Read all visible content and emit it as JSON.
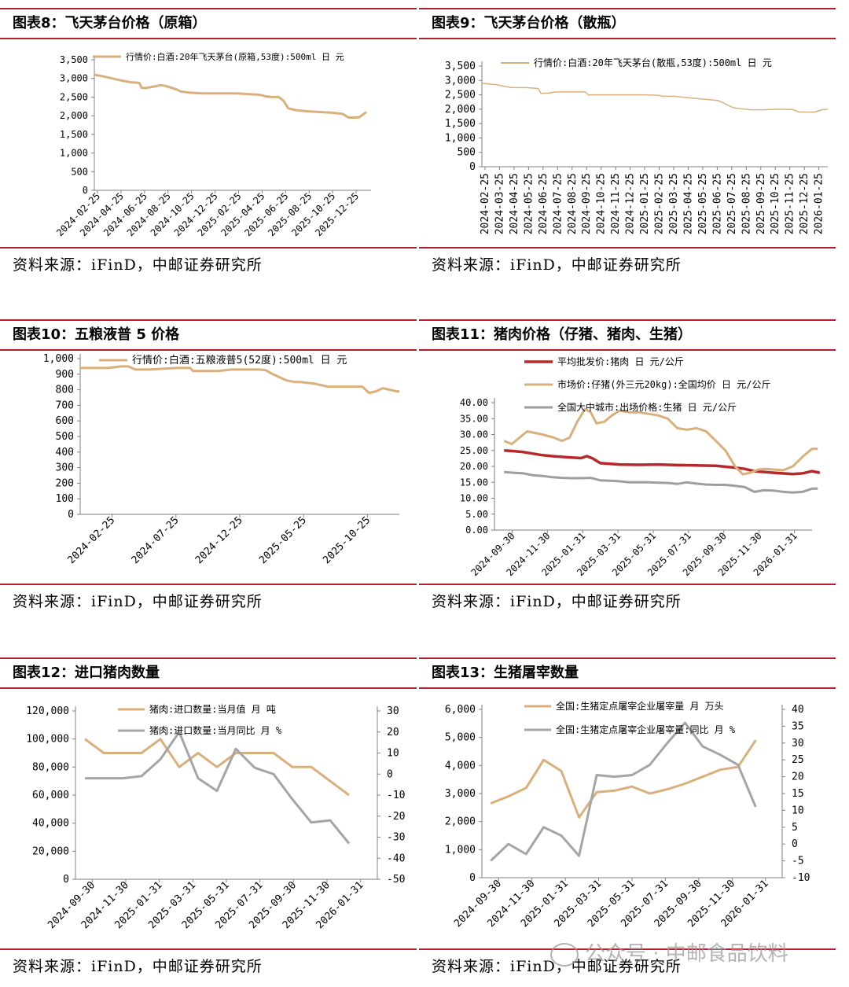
{
  "sources": [
    "资料来源：iFinD，中邮证券研究所",
    "资料来源：iFinD，中邮证券研究所",
    "资料来源：iFinD，中邮证券研究所",
    "资料来源：iFinD，中邮证券研究所",
    "资料来源：iFinD，中邮证券研究所",
    "资料来源：iFinD，中邮证券研究所"
  ],
  "watermark": "公众号 · 中邮食品饮料",
  "chart_data": [
    {
      "id": "c8",
      "type": "line",
      "title": "图表8：飞天茅台价格（原箱）",
      "legend": [
        "行情价:白酒:20年飞天茅台(原箱,53度):500ml 日 元"
      ],
      "ylim": [
        0,
        3500
      ],
      "yticks": [
        0,
        500,
        1000,
        1500,
        2000,
        2500,
        3000,
        3500
      ],
      "ytick_labels": [
        "0",
        "500",
        "1,000",
        "1,500",
        "2,000",
        "2,500",
        "3,000",
        "3,500"
      ],
      "xlabels": [
        "2024-02-25",
        "2024-04-25",
        "2024-06-25",
        "2024-08-25",
        "2024-10-25",
        "2024-12-25",
        "2025-02-25",
        "2025-04-25",
        "2025-06-25",
        "2025-08-25",
        "2025-10-25",
        "2025-12-25"
      ],
      "xlim": [
        0,
        23.4
      ],
      "series": [
        {
          "name": "行情价:白酒:20年飞天茅台(原箱,53度):500ml 日 元",
          "color": "#d9b07c",
          "width": 3,
          "x": [
            0,
            0.8,
            1.5,
            2.2,
            3.0,
            3.8,
            4.0,
            4.3,
            5.0,
            5.6,
            6.0,
            7.0,
            7.3,
            8.0,
            9.0,
            10.0,
            11.0,
            12.0,
            13.0,
            14.0,
            14.5,
            15.0,
            15.6,
            16.0,
            16.4,
            17.0,
            18.0,
            19.0,
            20.0,
            21.0,
            21.5,
            22.0,
            22.4,
            23.0
          ],
          "y": [
            3100,
            3050,
            3000,
            2950,
            2900,
            2880,
            2750,
            2740,
            2780,
            2820,
            2800,
            2700,
            2650,
            2620,
            2600,
            2600,
            2600,
            2600,
            2580,
            2560,
            2520,
            2500,
            2500,
            2400,
            2200,
            2150,
            2120,
            2100,
            2080,
            2050,
            1950,
            1950,
            1960,
            2100
          ]
        }
      ]
    },
    {
      "id": "c9",
      "type": "line",
      "title": "图表9：飞天茅台价格（散瓶）",
      "legend": [
        "行情价:白酒:20年飞天茅台(散瓶,53度):500ml 日 元"
      ],
      "ylim": [
        0,
        3500
      ],
      "yticks": [
        0,
        500,
        1000,
        1500,
        2000,
        2500,
        3000,
        3500
      ],
      "ytick_labels": [
        "0",
        "500",
        "1,000",
        "1,500",
        "2,000",
        "2,500",
        "3,000",
        "3,500"
      ],
      "xlabels": [
        "2024-02-25",
        "2024-03-25",
        "2024-04-25",
        "2024-05-25",
        "2024-06-25",
        "2024-07-25",
        "2024-08-25",
        "2024-09-25",
        "2024-10-25",
        "2024-11-25",
        "2024-12-25",
        "2025-01-25",
        "2025-02-25",
        "2025-03-25",
        "2025-04-25",
        "2025-05-25",
        "2025-06-25",
        "2025-07-25",
        "2025-08-25",
        "2025-09-25",
        "2025-10-25",
        "2025-11-25",
        "2025-12-25",
        "2026-01-25"
      ],
      "xlim": [
        0,
        23.4
      ],
      "series": [
        {
          "name": "行情价:白酒:20年飞天茅台(散瓶,53度):500ml 日 元",
          "color": "#d9b07c",
          "width": 1.5,
          "x": [
            0,
            1,
            1.5,
            2,
            3,
            3.8,
            4.0,
            4.5,
            5.0,
            6.0,
            7.0,
            7.2,
            8.0,
            9.0,
            10.0,
            11.0,
            12.0,
            12.2,
            13.0,
            14.0,
            15.0,
            16.0,
            16.4,
            17.0,
            17.8,
            18.2,
            19.0,
            20.0,
            21.0,
            21.5,
            22.0,
            22.5,
            23.0,
            23.4
          ],
          "y": [
            2900,
            2850,
            2800,
            2750,
            2750,
            2720,
            2550,
            2560,
            2600,
            2600,
            2600,
            2500,
            2500,
            2500,
            2500,
            2500,
            2480,
            2450,
            2450,
            2400,
            2350,
            2300,
            2200,
            2050,
            2000,
            1980,
            1980,
            2000,
            1990,
            1900,
            1900,
            1900,
            1980,
            2000
          ]
        }
      ]
    },
    {
      "id": "c10",
      "type": "line",
      "title": "图表10：五粮液普 5 价格",
      "legend": [
        "行情价:白酒:五粮液普5(52度):500ml 日 元"
      ],
      "ylim": [
        0,
        1000
      ],
      "yticks": [
        0,
        100,
        200,
        300,
        400,
        500,
        600,
        700,
        800,
        900,
        1000
      ],
      "ytick_labels": [
        "0",
        "100",
        "200",
        "300",
        "400",
        "500",
        "600",
        "700",
        "800",
        "900",
        "1,000"
      ],
      "xlabels": [
        "2024-02-25",
        "2024-07-25",
        "2024-12-25",
        "2025-05-25",
        "2025-10-25"
      ],
      "xlim": [
        0,
        23.2
      ],
      "series": [
        {
          "name": "行情价:白酒:五粮液普5(52度):500ml 日 元",
          "color": "#d9b07c",
          "width": 3,
          "x": [
            0,
            1,
            2,
            3,
            3.5,
            4,
            5,
            6,
            7,
            8,
            8.2,
            9,
            10,
            11,
            12,
            13,
            13.5,
            14,
            14.5,
            15,
            15.6,
            16,
            17,
            18,
            19,
            20,
            20.5,
            21,
            21.5,
            22,
            22.5,
            23,
            23.2
          ],
          "y": [
            940,
            940,
            940,
            950,
            950,
            930,
            930,
            935,
            940,
            940,
            920,
            920,
            920,
            930,
            930,
            930,
            925,
            900,
            880,
            860,
            850,
            850,
            840,
            820,
            820,
            820,
            820,
            780,
            790,
            810,
            800,
            790,
            790
          ]
        }
      ]
    },
    {
      "id": "c11",
      "type": "line",
      "title": "图表11：猪肉价格（仔猪、猪肉、生猪）",
      "legend": [
        "平均批发价:猪肉 日 元/公斤",
        "市场价:仔猪(外三元20kg):全国均价 日 元/公斤",
        "全国大中城市:出场价格:生猪 日 元/公斤"
      ],
      "ylim": [
        0,
        40
      ],
      "yticks": [
        0,
        5,
        10,
        15,
        20,
        25,
        30,
        35,
        40
      ],
      "ytick_labels": [
        "0.00",
        "5.00",
        "10.00",
        "15.00",
        "20.00",
        "25.00",
        "30.00",
        "35.00",
        "40.00"
      ],
      "xlabels": [
        "2024-09-30",
        "2024-11-30",
        "2025-01-31",
        "2025-03-31",
        "2025-05-31",
        "2025-07-31",
        "2025-09-30",
        "2025-11-30",
        "2026-01-31"
      ],
      "xlim": [
        0,
        16.5
      ],
      "series": [
        {
          "name": "平均批发价:猪肉 日 元/公斤",
          "color": "#b8282a",
          "width": 3.5,
          "x": [
            0,
            0.5,
            1,
            1.5,
            2,
            2.5,
            3,
            3.5,
            4,
            4.3,
            4.6,
            5,
            5.5,
            6,
            7,
            8,
            9,
            10,
            11,
            12,
            12.5,
            13,
            14,
            15,
            15.5,
            16,
            16.4
          ],
          "y": [
            25,
            24.8,
            24.5,
            24,
            23.5,
            23.2,
            23,
            22.8,
            22.6,
            23.2,
            22.5,
            21,
            20.8,
            20.6,
            20.5,
            20.6,
            20.4,
            20.3,
            20.2,
            19.6,
            19.2,
            18.5,
            18,
            17.6,
            17.8,
            18.5,
            18
          ]
        },
        {
          "name": "市场价:仔猪(外三元20kg):全国均价 日 元/公斤",
          "color": "#d9b07c",
          "width": 3,
          "x": [
            0,
            0.4,
            0.8,
            1.2,
            1.6,
            2.0,
            2.6,
            3.0,
            3.4,
            3.8,
            4.2,
            4.5,
            4.8,
            5.2,
            5.6,
            6.0,
            6.5,
            7.0,
            7.5,
            8.0,
            8.5,
            9.0,
            9.5,
            10.0,
            10.5,
            11.0,
            11.5,
            12.0,
            12.4,
            12.8,
            13.2,
            13.6,
            14.0,
            14.5,
            15.0,
            15.5,
            16.0,
            16.3
          ],
          "y": [
            28,
            27,
            29,
            31,
            30.5,
            30,
            29,
            28,
            29,
            34,
            38,
            37,
            33.5,
            34,
            36,
            37.5,
            37,
            37,
            36.5,
            36,
            35,
            32,
            31.5,
            32,
            31,
            28,
            25,
            20,
            17.5,
            18,
            19,
            19.2,
            19,
            18.8,
            20,
            23,
            25.5,
            25.5
          ]
        },
        {
          "name": "全国大中城市:出场价格:生猪 日 元/公斤",
          "color": "#9e9e9e",
          "width": 3,
          "x": [
            0,
            0.5,
            1,
            1.5,
            2,
            2.5,
            3,
            3.5,
            4,
            4.5,
            5,
            5.5,
            6,
            6.5,
            7,
            7.5,
            8,
            8.5,
            9,
            9.5,
            10,
            10.5,
            11,
            11.5,
            12,
            12.5,
            13,
            13.5,
            14,
            14.5,
            15,
            15.5,
            16,
            16.3
          ],
          "y": [
            18.2,
            18,
            17.8,
            17.2,
            17,
            16.6,
            16.4,
            16.3,
            16.3,
            16.4,
            15.6,
            15.5,
            15.3,
            15,
            15,
            15,
            14.9,
            14.8,
            14.5,
            15,
            14.6,
            14.3,
            14.2,
            14.2,
            13.9,
            13.5,
            12,
            12.5,
            12.4,
            12,
            11.8,
            12,
            13,
            13
          ]
        }
      ]
    },
    {
      "id": "c12",
      "type": "line",
      "title": "图表12：进口猪肉数量",
      "legend": [
        "猪肉:进口数量:当月值 月 吨",
        "猪肉:进口数量:当月同比 月 %"
      ],
      "ylim": [
        0,
        120000
      ],
      "yticks": [
        0,
        20000,
        40000,
        60000,
        80000,
        100000,
        120000
      ],
      "ytick_labels": [
        "0",
        "20,000",
        "40,000",
        "60,000",
        "80,000",
        "100,000",
        "120,000"
      ],
      "y2lim": [
        -50,
        30
      ],
      "y2ticks": [
        -50,
        -40,
        -30,
        -20,
        -10,
        0,
        10,
        20,
        30
      ],
      "y2tick_labels": [
        "-50",
        "-40",
        "-30",
        "-20",
        "-10",
        "0",
        "10",
        "20",
        "30"
      ],
      "xlabels": [
        "2024-09-30",
        "2024-11-30",
        "2025-01-31",
        "2025-03-31",
        "2025-05-31",
        "2025-07-31",
        "2025-09-30",
        "2025-11-30",
        "2026-01-31"
      ],
      "xlim": [
        0,
        16
      ],
      "series": [
        {
          "name": "猪肉:进口数量:当月值 月 吨",
          "color": "#d9b07c",
          "width": 3,
          "axis": "left",
          "x": [
            0,
            1,
            2,
            3,
            4,
            5,
            6,
            7,
            8,
            9,
            10,
            11,
            12,
            13,
            14
          ],
          "y": [
            100000,
            90000,
            90000,
            90000,
            100000,
            80000,
            90000,
            80000,
            90000,
            90000,
            90000,
            80000,
            80000,
            70000,
            60000
          ]
        },
        {
          "name": "猪肉:进口数量:当月同比 月 %",
          "color": "#a5a5a5",
          "width": 3,
          "axis": "right",
          "x": [
            0,
            1,
            2,
            3,
            4,
            5,
            6,
            7,
            8,
            9,
            10,
            11,
            12,
            13,
            14
          ],
          "y": [
            -2,
            -2,
            -2,
            -1,
            7,
            20,
            -2,
            -8,
            12,
            3,
            0,
            -12,
            -23,
            -22,
            -33
          ]
        }
      ]
    },
    {
      "id": "c13",
      "type": "line",
      "title": "图表13：生猪屠宰数量",
      "legend": [
        "全国:生猪定点屠宰企业屠宰量 月 万头",
        "全国:生猪定点屠宰企业屠宰量:同比 月 %"
      ],
      "ylim": [
        0,
        6000
      ],
      "yticks": [
        0,
        1000,
        2000,
        3000,
        4000,
        5000,
        6000
      ],
      "ytick_labels": [
        "0",
        "1,000",
        "2,000",
        "3,000",
        "4,000",
        "5,000",
        "6,000"
      ],
      "y2lim": [
        -10,
        40
      ],
      "y2ticks": [
        -10,
        -5,
        0,
        5,
        10,
        15,
        20,
        25,
        30,
        35,
        40
      ],
      "y2tick_labels": [
        "-10",
        "-5",
        "0",
        "5",
        "10",
        "15",
        "20",
        "25",
        "30",
        "35",
        "40"
      ],
      "xlabels": [
        "2024-09-30",
        "2024-11-30",
        "2025-01-31",
        "2025-03-31",
        "2025-05-31",
        "2025-07-31",
        "2025-09-30",
        "2025-11-30",
        "2026-01-31"
      ],
      "xlim": [
        0,
        17
      ],
      "series": [
        {
          "name": "全国:生猪定点屠宰企业屠宰量 月 万头",
          "color": "#d9b07c",
          "width": 3,
          "axis": "left",
          "x": [
            0,
            1,
            2,
            3,
            4,
            5,
            6,
            7,
            8,
            9,
            10,
            11,
            12,
            13,
            14,
            15
          ],
          "y": [
            2650,
            2900,
            3200,
            4200,
            3800,
            2150,
            3050,
            3100,
            3250,
            3000,
            3150,
            3350,
            3600,
            3850,
            3950,
            4900
          ]
        },
        {
          "name": "全国:生猪定点屠宰企业屠宰量:同比 月 %",
          "color": "#a5a5a5",
          "width": 3,
          "axis": "right",
          "x": [
            0,
            1,
            2,
            3,
            4,
            5,
            6,
            7,
            8,
            9,
            10,
            11,
            12,
            13,
            14,
            15
          ],
          "y": [
            -5,
            0,
            -3,
            5,
            2.5,
            -3.5,
            20.5,
            20,
            20.5,
            23.5,
            30,
            36,
            29,
            26.5,
            23.5,
            11
          ]
        }
      ]
    }
  ]
}
